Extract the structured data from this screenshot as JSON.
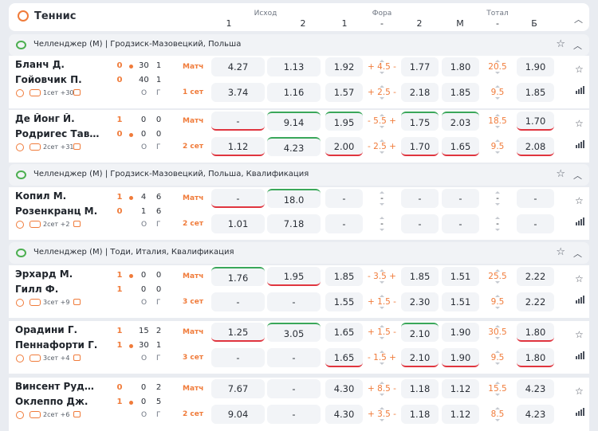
{
  "header": {
    "title": "Теннис",
    "groups": {
      "outcome": "Исход",
      "fora": "Фора",
      "total": "Тотал"
    },
    "cols": {
      "o1": "1",
      "o2": "2",
      "f1": "1",
      "fdash": "-",
      "f2": "2",
      "tm": "М",
      "tdash": "-",
      "tb": "Б"
    }
  },
  "leagues": [
    {
      "name": "Челленджер (М) | Гродзиск-Мазовецкий, Польша"
    },
    {
      "name": "Челленджер (М) | Гродзиск-Мазовецкий, Польша, Квалификация"
    },
    {
      "name": "Челленджер (М) | Тоди, Италия, Квалификация"
    }
  ],
  "og_labels": {
    "o": "О",
    "g": "Г"
  },
  "matches": [
    {
      "p1": "Бланч Д.",
      "p2": "Гойовчик П.",
      "s1": [
        "0",
        "30",
        "1"
      ],
      "s2": [
        "0",
        "40",
        "1"
      ],
      "serve": 1,
      "og": [
        "О",
        "Г"
      ],
      "info": "1сет +30",
      "rows": [
        {
          "label": "Матч",
          "o1": "4.27",
          "o2": "1.13",
          "f1": "1.92",
          "fv": "+ 4.5 -",
          "f2": "1.77",
          "tm": "1.80",
          "tv": "20.5",
          "tb": "1.90"
        },
        {
          "label": "1 сет",
          "o1": "3.74",
          "o2": "1.16",
          "f1": "1.57",
          "fv": "+ 2.5 -",
          "f2": "2.18",
          "tm": "1.85",
          "tv": "9.5",
          "tb": "1.85"
        }
      ]
    },
    {
      "p1": "Де Йонг Й.",
      "p2": "Родригес Таверн...",
      "s1": [
        "1",
        "0",
        "0"
      ],
      "s2": [
        "0",
        "0",
        "0"
      ],
      "serve": 2,
      "og": [
        "О",
        "Г"
      ],
      "info": "2сет +31",
      "rows": [
        {
          "label": "Матч",
          "o1": "-",
          "o2": "9.14",
          "f1": "1.95",
          "fv": "- 5.5 +",
          "f2": "1.75",
          "tm": "2.03",
          "tv": "18.5",
          "tb": "1.70"
        },
        {
          "label": "2 сет",
          "o1": "1.12",
          "o2": "4.23",
          "f1": "2.00",
          "fv": "- 2.5 +",
          "f2": "1.70",
          "tm": "1.65",
          "tv": "9.5",
          "tb": "2.08"
        }
      ]
    },
    {
      "p1": "Копил М.",
      "p2": "Розенкранц М.",
      "s1": [
        "1",
        "4",
        "6"
      ],
      "s2": [
        "0",
        "1",
        "6"
      ],
      "serve": 1,
      "og": [
        "О",
        "Г"
      ],
      "info": "2сет +2",
      "rows": [
        {
          "label": "Матч",
          "o1": "-",
          "o2": "18.0",
          "f1": "-",
          "fv": "-",
          "f2": "-",
          "tm": "-",
          "tv": "-",
          "tb": "-"
        },
        {
          "label": "2 сет",
          "o1": "1.01",
          "o2": "7.18",
          "f1": "-",
          "fv": "-",
          "f2": "-",
          "tm": "-",
          "tv": "-",
          "tb": "-"
        }
      ]
    },
    {
      "p1": "Эрхард М.",
      "p2": "Гилл Ф.",
      "s1": [
        "1",
        "0",
        "0"
      ],
      "s2": [
        "1",
        "0",
        "0"
      ],
      "serve": 1,
      "og": [
        "О",
        "Г"
      ],
      "info": "3сет +9",
      "rows": [
        {
          "label": "Матч",
          "o1": "1.76",
          "o2": "1.95",
          "f1": "1.85",
          "fv": "- 3.5 +",
          "f2": "1.85",
          "tm": "1.51",
          "tv": "25.5",
          "tb": "2.22"
        },
        {
          "label": "3 сет",
          "o1": "-",
          "o2": "-",
          "f1": "1.55",
          "fv": "+ 1.5 -",
          "f2": "2.30",
          "tm": "1.51",
          "tv": "9.5",
          "tb": "2.22"
        }
      ]
    },
    {
      "p1": "Орадини Г.",
      "p2": "Пеннафорти Г.",
      "s1": [
        "1",
        "15",
        "2"
      ],
      "s2": [
        "1",
        "30",
        "1"
      ],
      "serve": 2,
      "og": [
        "О",
        "Г"
      ],
      "info": "3сет +4",
      "rows": [
        {
          "label": "Матч",
          "o1": "1.25",
          "o2": "3.05",
          "f1": "1.65",
          "fv": "+ 1.5 -",
          "f2": "2.10",
          "tm": "1.90",
          "tv": "30.5",
          "tb": "1.80"
        },
        {
          "label": "3 сет",
          "o1": "-",
          "o2": "-",
          "f1": "1.65",
          "fv": "- 1.5 +",
          "f2": "2.10",
          "tm": "1.90",
          "tv": "9.5",
          "tb": "1.80"
        }
      ]
    },
    {
      "p1": "Винсент Руджер...",
      "p2": "Оклеппо Дж.",
      "s1": [
        "0",
        "0",
        "2"
      ],
      "s2": [
        "1",
        "0",
        "5"
      ],
      "serve": 2,
      "og": [
        "О",
        "Г"
      ],
      "info": "2сет +6",
      "rows": [
        {
          "label": "Матч",
          "o1": "7.67",
          "o2": "-",
          "f1": "4.30",
          "fv": "+ 8.5 -",
          "f2": "1.18",
          "tm": "1.12",
          "tv": "15.5",
          "tb": "4.23"
        },
        {
          "label": "2 сет",
          "o1": "9.04",
          "o2": "-",
          "f1": "4.30",
          "fv": "+ 3.5 -",
          "f2": "1.18",
          "tm": "1.12",
          "tv": "8.5",
          "tb": "4.23"
        }
      ]
    }
  ],
  "colors": {
    "accent": "#f07b3a",
    "up": "#3aa75a",
    "down": "#e0353f"
  }
}
